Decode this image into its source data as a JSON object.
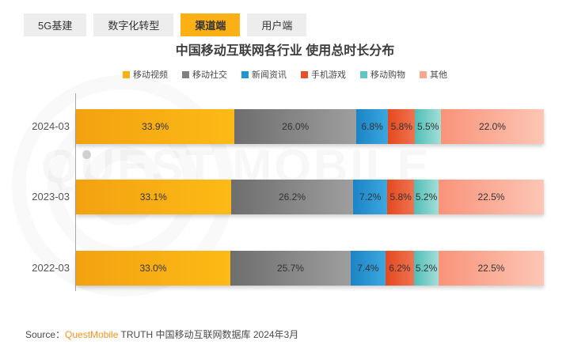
{
  "tabs": [
    {
      "label": "5G基建",
      "active": false
    },
    {
      "label": "数字化转型",
      "active": false
    },
    {
      "label": "渠道端",
      "active": true
    },
    {
      "label": "用户端",
      "active": false
    }
  ],
  "title": "中国移动互联网各行业 使用总时长分布",
  "watermark_text": "QUEST MOBILE",
  "accent_color": "#FBB116",
  "chart_data": {
    "type": "bar",
    "orientation": "horizontal-stacked",
    "unit": "%",
    "categories": [
      "2024-03",
      "2023-03",
      "2022-03"
    ],
    "series": [
      {
        "name": "移动视频",
        "values": [
          33.9,
          33.1,
          33.0
        ],
        "legend_color": "#FBB116",
        "color_from": "#F2A210",
        "color_to": "#FDBA16"
      },
      {
        "name": "移动社交",
        "values": [
          26.0,
          26.2,
          25.7
        ],
        "legend_color": "#808080",
        "color_from": "#6E6E6E",
        "color_to": "#9E9E9E"
      },
      {
        "name": "新闻资讯",
        "values": [
          6.8,
          7.2,
          7.4
        ],
        "legend_color": "#2196D3",
        "color_from": "#1B84C6",
        "color_to": "#3BA7DE"
      },
      {
        "name": "手机游戏",
        "values": [
          5.8,
          5.8,
          6.2
        ],
        "legend_color": "#E8502A",
        "color_from": "#E5491F",
        "color_to": "#EE7350"
      },
      {
        "name": "移动购物",
        "values": [
          5.5,
          5.2,
          5.2
        ],
        "legend_color": "#5FC7BF",
        "color_from": "#4FBFB7",
        "color_to": "#A5DDD8"
      },
      {
        "name": "其他",
        "values": [
          22.0,
          22.5,
          22.5
        ],
        "legend_color": "#F9A78F",
        "color_from": "#F9937A",
        "color_to": "#FCC6B5"
      }
    ],
    "xlim": [
      0,
      100
    ],
    "grid": false,
    "legend_position": "top-center"
  },
  "footer": {
    "prefix": "Source：",
    "brand": "QuestMobile",
    "rest": " TRUTH 中国移动互联网数据库 2024年3月"
  }
}
